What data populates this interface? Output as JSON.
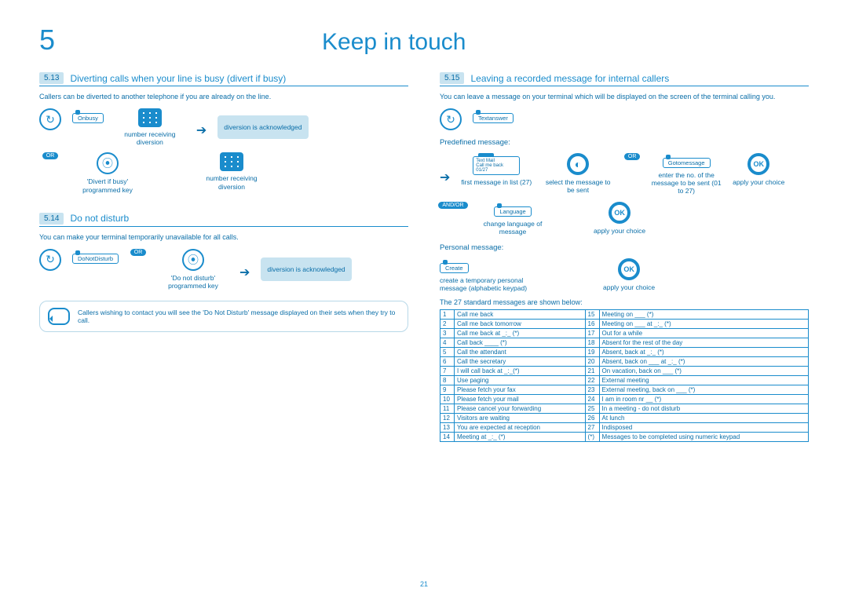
{
  "chapter": {
    "num": "5",
    "title": "Keep in touch"
  },
  "page": "21",
  "s513": {
    "num": "5.13",
    "title": "Diverting calls when your line is busy (divert if busy)",
    "desc": "Callers can be diverted to another telephone if you are already on the line.",
    "softkey": "Onbusy",
    "ack": "diversion is acknowledged",
    "lbl_num": "number receiving diversion",
    "lbl_key": "'Divert if busy' programmed key",
    "lbl_num2": "number receiving diversion",
    "or": "OR"
  },
  "s514": {
    "num": "5.14",
    "title": "Do not disturb",
    "desc": "You can make your terminal temporarily unavailable for all calls.",
    "softkey": "DoNotDisturb",
    "ack": "diversion is acknowledged",
    "lbl_key": "'Do not disturb' programmed key",
    "note": "Callers wishing to contact you will see the 'Do    Not Disturb' message displayed on their sets when they try to call.",
    "or": "OR"
  },
  "s515": {
    "num": "5.15",
    "title": "Leaving a recorded message for internal callers",
    "desc": "You can leave a message on your terminal which will be displayed on the screen of the terminal calling you.",
    "softkey": "Textanswer",
    "sub_pre": "Predefined message:",
    "screen": {
      "l1": "Text Mail",
      "l2": "Call me back",
      "l3": "01/27"
    },
    "lbl_first": "first message in list (27)",
    "lbl_sel": "select the message to be sent",
    "gotokey": "Gotomessage",
    "lbl_enter": "enter the no. of the message to be sent (01 to 27)",
    "lbl_apply": "apply your choice",
    "andor": "AND/OR",
    "langkey": "Language",
    "lbl_lang": "change language of message",
    "lbl_apply2": "apply your choice",
    "sub_pers": "Personal message:",
    "createkey": "Create",
    "lbl_create": "create a temporary personal message (alphabetic keypad)",
    "lbl_apply3": "apply your choice",
    "tbl_title": "The 27 standard messages are shown below:",
    "or": "OR",
    "ok": "OK",
    "msgs": [
      [
        "1",
        "Call me back",
        "15",
        "Meeting on ___ (*)"
      ],
      [
        "2",
        "Call me back tomorrow",
        "16",
        "Meeting on ___ at _:_ (*)"
      ],
      [
        "3",
        "Call me back at _:_ (*)",
        "17",
        "Out for a while"
      ],
      [
        "4",
        "Call back ____ (*)",
        "18",
        "Absent for the rest of the day"
      ],
      [
        "5",
        "Call the attendant",
        "19",
        "Absent, back at _:_ (*)"
      ],
      [
        "6",
        "Call the secretary",
        "20",
        "Absent, back on ___ at _:_ (*)"
      ],
      [
        "7",
        "I will call back at _:_(*)",
        "21",
        "On vacation, back on ___ (*)"
      ],
      [
        "8",
        "Use paging",
        "22",
        "External meeting"
      ],
      [
        "9",
        "Please fetch your fax",
        "23",
        "External meeting, back on ___ (*)"
      ],
      [
        "10",
        "Please fetch your mail",
        "24",
        "I am in room nr __ (*)"
      ],
      [
        "11",
        "Please cancel your forwarding",
        "25",
        "In a meeting - do not disturb"
      ],
      [
        "12",
        "Visitors are waiting",
        "26",
        "At lunch"
      ],
      [
        "13",
        "You are expected at reception",
        "27",
        "Indisposed"
      ],
      [
        "14",
        "Meeting at _:_ (*)",
        "(*)",
        "Messages to be completed using numeric keypad"
      ]
    ]
  }
}
